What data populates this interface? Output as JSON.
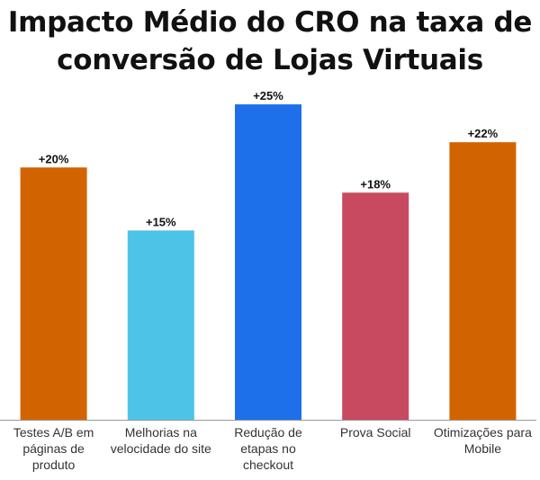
{
  "chart_data": {
    "type": "bar",
    "title": "Impacto Médio do CRO na taxa de conversão de Lojas Virtuais",
    "xlabel": "",
    "ylabel": "",
    "ylim": [
      0,
      27
    ],
    "grid": false,
    "legend": "none",
    "categories": [
      "Testes A/B em páginas de produto",
      "Melhorias na velocidade do site",
      "Redução de etapas no checkout",
      "Prova Social",
      "Otimizações para Mobile"
    ],
    "values": [
      20,
      15,
      25,
      18,
      22
    ],
    "data_labels": [
      "+20%",
      "+15%",
      "+25%",
      "+18%",
      "+22%"
    ],
    "colors": [
      "#D16400",
      "#4DC3E8",
      "#1E6FEA",
      "#C84A60",
      "#D16400"
    ],
    "axis_color": "#999999"
  }
}
